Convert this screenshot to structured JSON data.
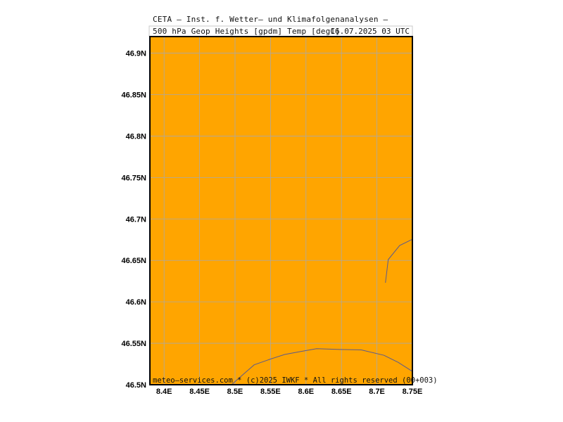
{
  "title": {
    "line1": "CETA — Inst. f. Wetter— und Klimafolgenanalysen —",
    "line2": "500 hPa Geop Heights [gpdm] Temp [degC]",
    "date": "16.07.2025 03 UTC"
  },
  "footer": "meteo—services.com * (c)2025 IWKF * All rights reserved (00+003)",
  "colors": {
    "field": "#ffa500",
    "grid": "#a9a9a9",
    "coastline": "#5a5a8c",
    "frame": "#000000"
  },
  "map": {
    "lon_range": [
      8.38,
      8.75
    ],
    "lat_range": [
      46.5,
      46.92
    ],
    "lon_ticks": [
      {
        "value": 8.4,
        "label": "8.4E"
      },
      {
        "value": 8.45,
        "label": "8.45E"
      },
      {
        "value": 8.5,
        "label": "8.5E"
      },
      {
        "value": 8.55,
        "label": "8.55E"
      },
      {
        "value": 8.6,
        "label": "8.6E"
      },
      {
        "value": 8.65,
        "label": "8.65E"
      },
      {
        "value": 8.7,
        "label": "8.7E"
      },
      {
        "value": 8.75,
        "label": "8.75E"
      }
    ],
    "lat_ticks": [
      {
        "value": 46.5,
        "label": "46.5N"
      },
      {
        "value": 46.55,
        "label": "46.55N"
      },
      {
        "value": 46.6,
        "label": "46.6N"
      },
      {
        "value": 46.65,
        "label": "46.65N"
      },
      {
        "value": 46.7,
        "label": "46.7N"
      },
      {
        "value": 46.75,
        "label": "46.75N"
      },
      {
        "value": 46.8,
        "label": "46.8N"
      },
      {
        "value": 46.85,
        "label": "46.85N"
      },
      {
        "value": 46.9,
        "label": "46.9N"
      }
    ],
    "boundaries": [
      [
        [
          8.495,
          46.5
        ],
        [
          8.515,
          46.515
        ],
        [
          8.527,
          46.524
        ],
        [
          8.55,
          46.531
        ],
        [
          8.57,
          46.5365
        ],
        [
          8.592,
          46.54
        ],
        [
          8.615,
          46.5435
        ],
        [
          8.648,
          46.5425
        ],
        [
          8.678,
          46.542
        ],
        [
          8.71,
          46.5355
        ],
        [
          8.73,
          46.527
        ],
        [
          8.75,
          46.516
        ]
      ],
      [
        [
          8.712,
          46.623
        ],
        [
          8.716,
          46.651
        ],
        [
          8.732,
          46.668
        ],
        [
          8.75,
          46.6755
        ]
      ]
    ]
  }
}
